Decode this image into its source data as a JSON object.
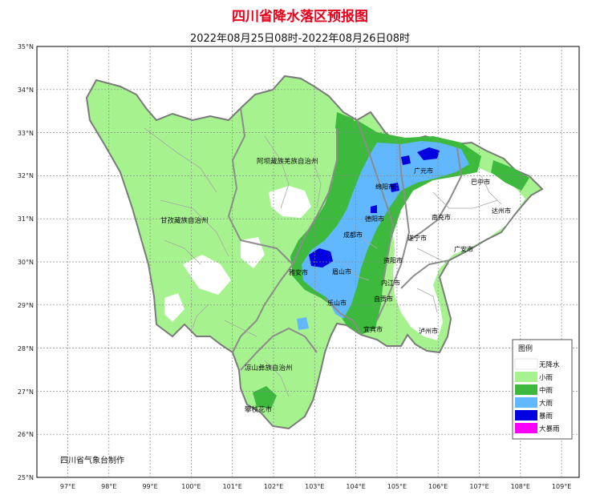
{
  "title": "四川省降水落区预报图",
  "subtitle": "2022年08月25日08时-2022年08月26日08时",
  "credit": "四川省气象台制作",
  "axes": {
    "lat_labels": [
      "35°N",
      "34°N",
      "33°N",
      "32°N",
      "31°N",
      "30°N",
      "29°N",
      "28°N",
      "27°N",
      "26°N",
      "25°N"
    ],
    "lon_labels": [
      "97°E",
      "98°E",
      "99°E",
      "100°E",
      "101°E",
      "102°E",
      "103°E",
      "104°E",
      "105°E",
      "106°E",
      "107°E",
      "108°E",
      "109°E"
    ]
  },
  "regions": {
    "aba": "阿坝藏族羌族自治州",
    "ganzi": "甘孜藏族自治州",
    "liangshan": "凉山彝族自治州",
    "panzhihua": "攀枝花市"
  },
  "cities": {
    "guangyuan": "广元市",
    "bazhong": "巴中市",
    "mianyang": "绵阳市",
    "dazhou": "达州市",
    "nanchong": "南充市",
    "deyang": "德阳市",
    "chengdu": "成都市",
    "suining": "遂宁市",
    "guangan": "广安市",
    "ziyang": "资阳市",
    "yaan": "雅安市",
    "meishan": "眉山市",
    "neijiang": "内江市",
    "leshan": "乐山市",
    "zigong": "自贡市",
    "yibin": "宜宾市",
    "luzhou": "泸州市"
  },
  "legend": {
    "title": "图例",
    "items": [
      {
        "label": "无降水",
        "color": "#ffffff"
      },
      {
        "label": "小雨",
        "color": "#a6f28f"
      },
      {
        "label": "中雨",
        "color": "#3dba3d"
      },
      {
        "label": "大雨",
        "color": "#61b8ff"
      },
      {
        "label": "暴雨",
        "color": "#0000e1"
      },
      {
        "label": "大暴雨",
        "color": "#fa00fa"
      }
    ]
  },
  "colors": {
    "frame": "#000000",
    "grid": "#888888",
    "border_gray": "#8c8c8c",
    "title_red": "#e8001c"
  }
}
